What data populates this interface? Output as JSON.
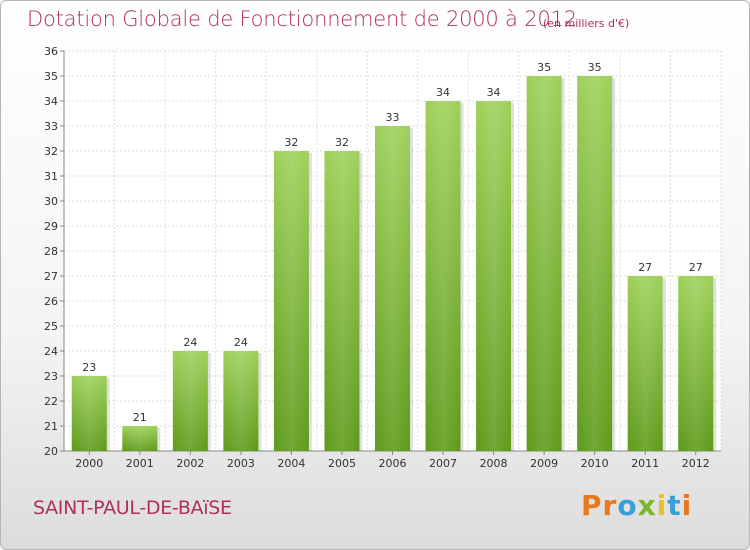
{
  "header": {
    "title": "Dotation Globale de Fonctionnement de 2000 à 2012",
    "subtitle": "(en milliers d'€)"
  },
  "footer": {
    "commune": "SAINT-PAUL-DE-BAïSE",
    "logo_letters": [
      "P",
      "r",
      "o",
      "x",
      "i",
      "t",
      "i"
    ],
    "logo_colors": [
      "#e8781e",
      "#e8781e",
      "#3a9fd6",
      "#7ab829",
      "#e8c21e",
      "#3a9fd6",
      "#e8781e"
    ]
  },
  "chart_data": {
    "type": "bar",
    "title": "Dotation Globale de Fonctionnement de 2000 à 2012",
    "subtitle": "(en milliers d'€)",
    "categories": [
      "2000",
      "2001",
      "2002",
      "2003",
      "2004",
      "2005",
      "2006",
      "2007",
      "2008",
      "2009",
      "2010",
      "2011",
      "2012"
    ],
    "values": [
      23,
      21,
      24,
      24,
      32,
      32,
      33,
      34,
      34,
      35,
      35,
      27,
      27
    ],
    "value_labels": [
      "23",
      "21",
      "24",
      "24",
      "32",
      "32",
      "33",
      "34",
      "34",
      "35",
      "35",
      "27",
      "27"
    ],
    "yticks": [
      "20",
      "21",
      "22",
      "23",
      "24",
      "25",
      "26",
      "27",
      "28",
      "29",
      "30",
      "31",
      "32",
      "33",
      "34",
      "35",
      "36"
    ],
    "ylim": [
      20,
      36
    ],
    "grid": true,
    "bar_color": "#8cc63f",
    "xlabel": "",
    "ylabel": ""
  }
}
